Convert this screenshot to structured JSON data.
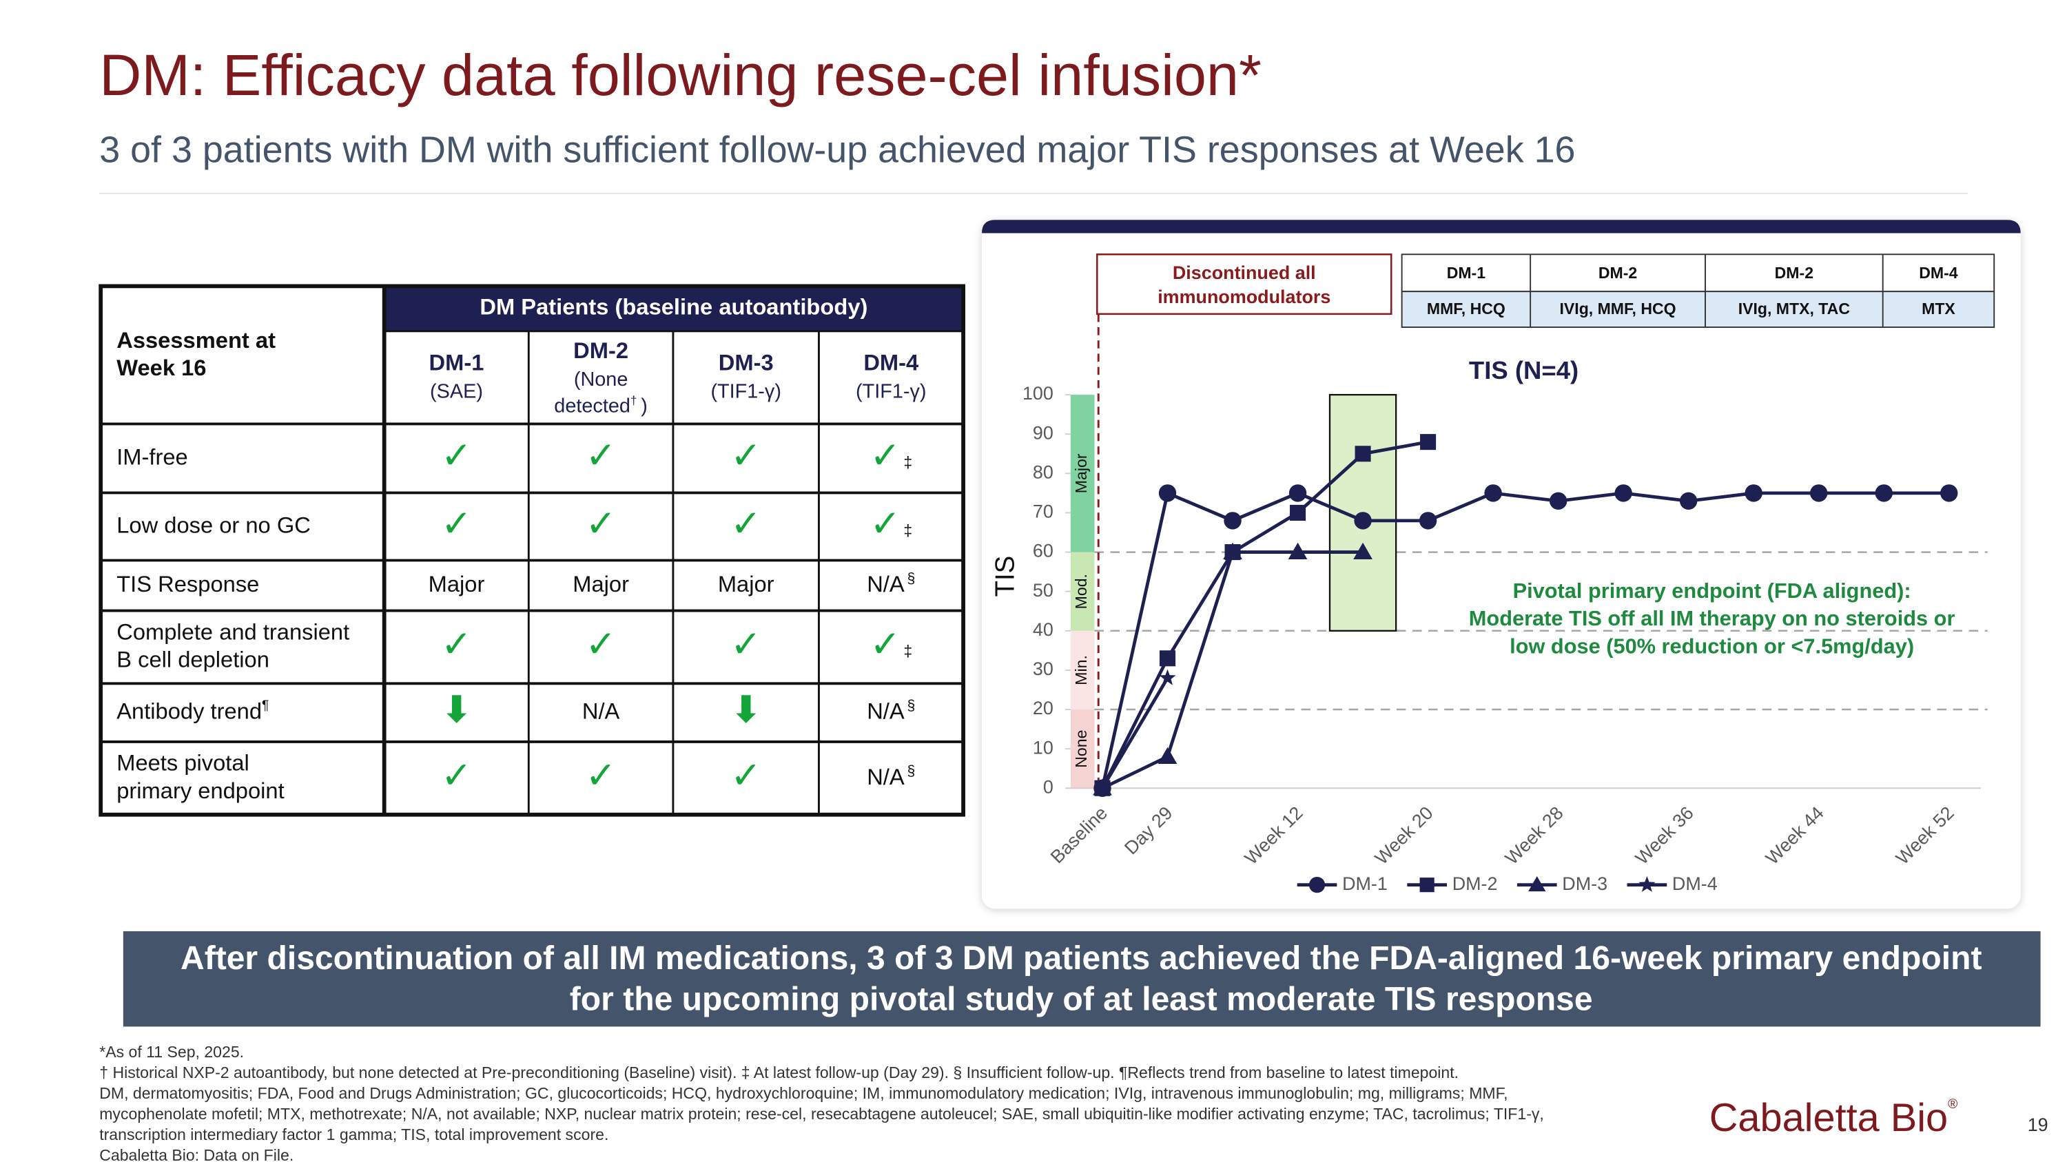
{
  "header": {
    "title": "DM: Efficacy data following rese-cel infusion*",
    "subtitle": "3 of 3 patients with DM with sufficient follow-up achieved major TIS responses at Week 16"
  },
  "table": {
    "corner": [
      "Assessment at",
      "Week 16"
    ],
    "group_header": "DM Patients (baseline autoantibody)",
    "columns": [
      {
        "name": "DM-1",
        "sub": [
          "(SAE)"
        ]
      },
      {
        "name": "DM-2",
        "sub": [
          "(None",
          "detected"
        ],
        "note": "†",
        "after": ")"
      },
      {
        "name": "DM-3",
        "sub": [
          "(TIF1-γ)"
        ]
      },
      {
        "name": "DM-4",
        "sub": [
          "(TIF1-γ)"
        ]
      }
    ],
    "rows": [
      {
        "label": [
          "IM-free"
        ],
        "cells": [
          {
            "text": "✓"
          },
          {
            "text": "✓"
          },
          {
            "text": "✓"
          },
          {
            "text": "✓",
            "note": "‡"
          }
        ]
      },
      {
        "label": [
          "Low dose or no GC"
        ],
        "cells": [
          {
            "text": "✓"
          },
          {
            "text": "✓"
          },
          {
            "text": "✓"
          },
          {
            "text": "✓",
            "note": "‡"
          }
        ]
      },
      {
        "label": [
          "TIS Response"
        ],
        "cells": [
          {
            "text": "Major"
          },
          {
            "text": "Major"
          },
          {
            "text": "Major"
          },
          {
            "text": "N/A",
            "note": "§"
          }
        ]
      },
      {
        "label": [
          "Complete and transient",
          "B cell depletion"
        ],
        "cells": [
          {
            "text": "✓"
          },
          {
            "text": "✓"
          },
          {
            "text": "✓"
          },
          {
            "text": "✓",
            "note": "‡"
          }
        ]
      },
      {
        "label": [
          "Antibody trend"
        ],
        "note": "¶",
        "cells": [
          {
            "text": "⬇"
          },
          {
            "text": "N/A"
          },
          {
            "text": "⬇"
          },
          {
            "text": "N/A",
            "note": "§"
          }
        ]
      },
      {
        "label": [
          "Meets pivotal",
          "primary endpoint"
        ],
        "cells": [
          {
            "text": "✓"
          },
          {
            "text": "✓"
          },
          {
            "text": "✓"
          },
          {
            "text": "N/A",
            "note": "§"
          }
        ]
      }
    ]
  },
  "chart_data": {
    "type": "line",
    "title": "TIS (N=4)",
    "y_label": "TIS",
    "categories": [
      "Baseline",
      "Day 29",
      null,
      "Week 12",
      null,
      "Week 20",
      null,
      "Week 28",
      null,
      "Week 36",
      null,
      "Week 44",
      null,
      "Week 52"
    ],
    "series": [
      {
        "name": "DM-1",
        "color": "#1f2052",
        "marker": "circle",
        "values": [
          0,
          75,
          68,
          75,
          68,
          68,
          75,
          73,
          75,
          73,
          75,
          75,
          75,
          75
        ]
      },
      {
        "name": "DM-2",
        "color": "#1f2052",
        "marker": "square",
        "values": [
          0,
          33,
          60,
          70,
          85,
          88,
          null,
          null,
          null,
          null,
          null,
          null,
          null,
          null
        ]
      },
      {
        "name": "DM-3",
        "color": "#1f2052",
        "marker": "triangle",
        "values": [
          0,
          8,
          60,
          60,
          60,
          null,
          null,
          null,
          null,
          null,
          null,
          null,
          null,
          null
        ]
      },
      {
        "name": "DM-4",
        "color": "#1f2052",
        "marker": "star",
        "values": [
          0,
          28,
          null,
          null,
          null,
          null,
          null,
          null,
          null,
          null,
          null,
          null,
          null,
          null
        ]
      }
    ],
    "ylim": [
      0,
      100
    ],
    "yticks": [
      0,
      10,
      20,
      30,
      40,
      50,
      60,
      70,
      80,
      90,
      100
    ],
    "bands": [
      {
        "label": "None",
        "from": 0,
        "to": 20,
        "color": "#f6d3d3"
      },
      {
        "label": "Min.",
        "from": 20,
        "to": 40,
        "color": "#fbe4e4"
      },
      {
        "label": "Mod.",
        "from": 40,
        "to": 60,
        "color": "#c9e7b3"
      },
      {
        "label": "Major",
        "from": 60,
        "to": 100,
        "color": "#7fd3a0"
      }
    ],
    "reference_lines": [
      20,
      40,
      60
    ],
    "highlight": {
      "index": 4,
      "from": 40,
      "to": 100,
      "color": "#dcefc8"
    },
    "discontinued_note": [
      "Discontinued all",
      "immunomodulators"
    ],
    "regimens": [
      {
        "patient": "DM-1",
        "drugs": "MMF, HCQ"
      },
      {
        "patient": "DM-2",
        "drugs": "IVIg, MMF, HCQ"
      },
      {
        "patient": "DM-2",
        "drugs": "IVIg, MTX, TAC"
      },
      {
        "patient": "DM-4",
        "drugs": "MTX"
      }
    ],
    "annotation": [
      "Pivotal primary endpoint (FDA aligned):",
      "Moderate TIS off all IM therapy on no steroids or",
      "low dose (50% reduction or <7.5mg/day)"
    ],
    "legend": "bottom"
  },
  "callout": [
    "After discontinuation of all IM medications, 3 of 3 DM patients achieved the FDA-aligned 16-week primary endpoint",
    "for the upcoming pivotal study of at least moderate TIS response"
  ],
  "footnotes": [
    "*As of 11 Sep, 2025.",
    "† Historical NXP-2 autoantibody, but none detected at Pre-preconditioning (Baseline) visit). ‡ At latest follow-up (Day 29). § Insufficient follow-up. ¶Reflects trend from baseline to latest timepoint.",
    "DM, dermatomyositis; FDA, Food and Drugs Administration; GC, glucocorticoids; HCQ, hydroxychloroquine; IM, immunomodulatory medication; IVIg, intravenous immunoglobulin; mg, milligrams; MMF,",
    "mycophenolate mofetil; MTX, methotrexate; N/A, not available; NXP, nuclear matrix protein; rese-cel, resecabtagene autoleucel; SAE, small ubiquitin-like modifier activating enzyme; TAC, tacrolimus; TIF1-γ,",
    "transcription intermediary factor 1 gamma; TIS, total improvement score.",
    "Cabaletta Bio: Data on File."
  ],
  "logo": {
    "name": "Cabaletta Bio",
    "mark": "®"
  },
  "page_number": "19"
}
